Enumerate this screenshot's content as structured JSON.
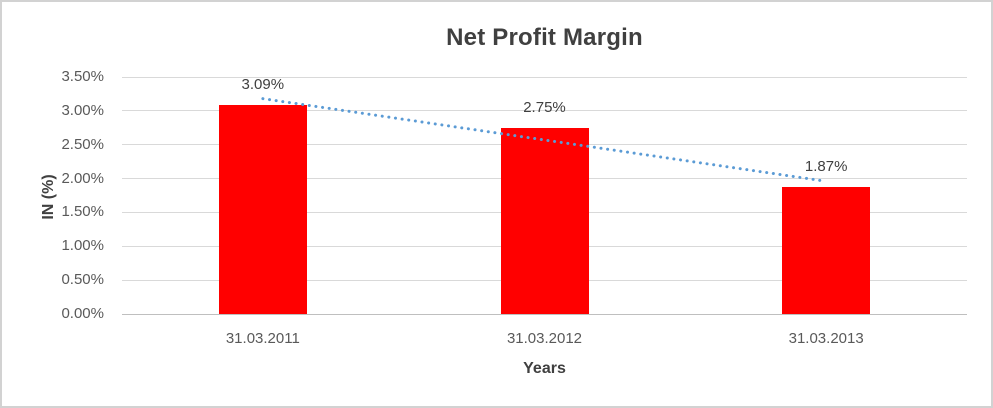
{
  "chart_data": {
    "type": "bar",
    "title": "Net Profit Margin",
    "xlabel": "Years",
    "ylabel": "IN (%)",
    "categories": [
      "31.03.2011",
      "31.03.2012",
      "31.03.2013"
    ],
    "values": [
      3.09,
      2.75,
      1.87
    ],
    "data_labels": [
      "3.09%",
      "2.75%",
      "1.87%"
    ],
    "ylim": [
      0,
      3.5
    ],
    "ytick_step": 0.5,
    "ytick_labels": [
      "0.00%",
      "0.50%",
      "1.00%",
      "1.50%",
      "2.00%",
      "2.50%",
      "3.00%",
      "3.50%"
    ],
    "grid": true,
    "legend": false,
    "bar_color": "#ff0000",
    "trendline": {
      "type": "linear",
      "style": "dotted",
      "color": "#5b9bd5"
    },
    "colors": {
      "title_text": "#404040",
      "tick_text": "#595959",
      "gridline": "#d9d9d9",
      "axis_line": "#bfbfbf",
      "frame_border": "#d2d2d2",
      "background": "#ffffff"
    }
  }
}
